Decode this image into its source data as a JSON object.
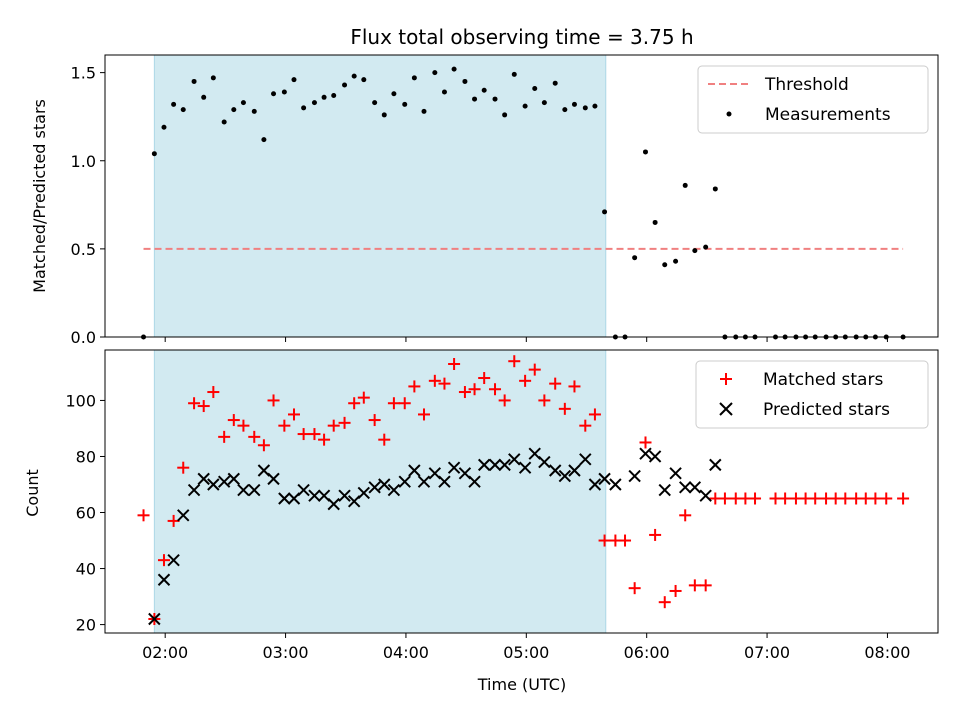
{
  "chart_data": {
    "title": "Flux total observing time = 3.75 h",
    "xlabel": "Time (UTC)",
    "x_tick_labels": [
      "02:00",
      "03:00",
      "04:00",
      "05:00",
      "06:00",
      "07:00",
      "08:00"
    ],
    "x_ticks": [
      2,
      3,
      4,
      5,
      6,
      7,
      8
    ],
    "xlim": [
      1.5,
      8.42
    ],
    "shaded_interval": [
      1.91,
      5.66
    ],
    "colors": {
      "shade": "#add8e6",
      "threshold": "#f08080",
      "measurements": "#000000",
      "matched": "#ff0000",
      "predicted": "#000000"
    },
    "panels": [
      {
        "type": "scatter",
        "ylabel": "Matched/Predicted stars",
        "ylim": [
          0,
          1.6
        ],
        "y_ticks": [
          0.0,
          0.5,
          1.0,
          1.5
        ],
        "y_tick_labels": [
          "0.0",
          "0.5",
          "1.0",
          "1.5"
        ],
        "legend_position": "top-right",
        "threshold": {
          "name": "Threshold",
          "value": 0.5,
          "x_range": [
            1.82,
            8.13
          ]
        },
        "series": [
          {
            "name": "Measurements",
            "points": [
              [
                1.82,
                0.0
              ],
              [
                1.91,
                1.04
              ],
              [
                1.99,
                1.19
              ],
              [
                2.07,
                1.32
              ],
              [
                2.15,
                1.29
              ],
              [
                2.24,
                1.45
              ],
              [
                2.32,
                1.36
              ],
              [
                2.4,
                1.47
              ],
              [
                2.49,
                1.22
              ],
              [
                2.57,
                1.29
              ],
              [
                2.65,
                1.33
              ],
              [
                2.74,
                1.28
              ],
              [
                2.82,
                1.12
              ],
              [
                2.9,
                1.38
              ],
              [
                2.99,
                1.39
              ],
              [
                3.07,
                1.46
              ],
              [
                3.15,
                1.3
              ],
              [
                3.24,
                1.33
              ],
              [
                3.32,
                1.36
              ],
              [
                3.4,
                1.37
              ],
              [
                3.49,
                1.43
              ],
              [
                3.57,
                1.48
              ],
              [
                3.65,
                1.46
              ],
              [
                3.74,
                1.33
              ],
              [
                3.82,
                1.26
              ],
              [
                3.9,
                1.38
              ],
              [
                3.99,
                1.32
              ],
              [
                4.07,
                1.47
              ],
              [
                4.15,
                1.28
              ],
              [
                4.24,
                1.5
              ],
              [
                4.32,
                1.39
              ],
              [
                4.4,
                1.52
              ],
              [
                4.49,
                1.45
              ],
              [
                4.57,
                1.35
              ],
              [
                4.65,
                1.4
              ],
              [
                4.74,
                1.35
              ],
              [
                4.82,
                1.26
              ],
              [
                4.9,
                1.49
              ],
              [
                4.99,
                1.31
              ],
              [
                5.07,
                1.41
              ],
              [
                5.15,
                1.33
              ],
              [
                5.24,
                1.44
              ],
              [
                5.32,
                1.29
              ],
              [
                5.4,
                1.32
              ],
              [
                5.49,
                1.3
              ],
              [
                5.57,
                1.31
              ],
              [
                5.65,
                0.71
              ],
              [
                5.74,
                0.0
              ],
              [
                5.82,
                0.0
              ],
              [
                5.9,
                0.45
              ],
              [
                5.99,
                1.05
              ],
              [
                6.07,
                0.65
              ],
              [
                6.15,
                0.41
              ],
              [
                6.24,
                0.43
              ],
              [
                6.32,
                0.86
              ],
              [
                6.4,
                0.49
              ],
              [
                6.49,
                0.51
              ],
              [
                6.57,
                0.84
              ],
              [
                6.65,
                0.0
              ],
              [
                6.74,
                0.0
              ],
              [
                6.82,
                0.0
              ],
              [
                6.9,
                0.0
              ],
              [
                7.07,
                0.0
              ],
              [
                7.15,
                0.0
              ],
              [
                7.24,
                0.0
              ],
              [
                7.32,
                0.0
              ],
              [
                7.4,
                0.0
              ],
              [
                7.49,
                0.0
              ],
              [
                7.57,
                0.0
              ],
              [
                7.65,
                0.0
              ],
              [
                7.74,
                0.0
              ],
              [
                7.82,
                0.0
              ],
              [
                7.9,
                0.0
              ],
              [
                7.99,
                0.0
              ],
              [
                8.13,
                0.0
              ]
            ]
          }
        ]
      },
      {
        "type": "scatter",
        "ylabel": "Count",
        "ylim": [
          17,
          118
        ],
        "y_ticks": [
          20,
          40,
          60,
          80,
          100
        ],
        "y_tick_labels": [
          "20",
          "40",
          "60",
          "80",
          "100"
        ],
        "legend_position": "top-right",
        "series": [
          {
            "name": "Matched stars",
            "marker": "plus",
            "points": [
              [
                1.82,
                59
              ],
              [
                1.91,
                22
              ],
              [
                1.99,
                43
              ],
              [
                2.07,
                57
              ],
              [
                2.15,
                76
              ],
              [
                2.24,
                99
              ],
              [
                2.32,
                98
              ],
              [
                2.4,
                103
              ],
              [
                2.49,
                87
              ],
              [
                2.57,
                93
              ],
              [
                2.65,
                91
              ],
              [
                2.74,
                87
              ],
              [
                2.82,
                84
              ],
              [
                2.9,
                100
              ],
              [
                2.99,
                91
              ],
              [
                3.07,
                95
              ],
              [
                3.15,
                88
              ],
              [
                3.24,
                88
              ],
              [
                3.32,
                86
              ],
              [
                3.4,
                91
              ],
              [
                3.49,
                92
              ],
              [
                3.57,
                99
              ],
              [
                3.65,
                101
              ],
              [
                3.74,
                93
              ],
              [
                3.82,
                86
              ],
              [
                3.9,
                99
              ],
              [
                3.99,
                99
              ],
              [
                4.07,
                105
              ],
              [
                4.15,
                95
              ],
              [
                4.24,
                107
              ],
              [
                4.32,
                106
              ],
              [
                4.4,
                113
              ],
              [
                4.49,
                103
              ],
              [
                4.57,
                104
              ],
              [
                4.65,
                108
              ],
              [
                4.74,
                104
              ],
              [
                4.82,
                100
              ],
              [
                4.9,
                114
              ],
              [
                4.99,
                107
              ],
              [
                5.07,
                111
              ],
              [
                5.15,
                100
              ],
              [
                5.24,
                106
              ],
              [
                5.32,
                97
              ],
              [
                5.4,
                105
              ],
              [
                5.49,
                91
              ],
              [
                5.57,
                95
              ],
              [
                5.65,
                50
              ],
              [
                5.74,
                50
              ],
              [
                5.82,
                50
              ],
              [
                5.9,
                33
              ],
              [
                5.99,
                85
              ],
              [
                6.07,
                52
              ],
              [
                6.15,
                28
              ],
              [
                6.24,
                32
              ],
              [
                6.32,
                59
              ],
              [
                6.4,
                34
              ],
              [
                6.49,
                34
              ],
              [
                6.57,
                65
              ],
              [
                6.65,
                65
              ],
              [
                6.74,
                65
              ],
              [
                6.82,
                65
              ],
              [
                6.9,
                65
              ],
              [
                7.07,
                65
              ],
              [
                7.15,
                65
              ],
              [
                7.24,
                65
              ],
              [
                7.32,
                65
              ],
              [
                7.4,
                65
              ],
              [
                7.49,
                65
              ],
              [
                7.57,
                65
              ],
              [
                7.65,
                65
              ],
              [
                7.74,
                65
              ],
              [
                7.82,
                65
              ],
              [
                7.9,
                65
              ],
              [
                7.99,
                65
              ],
              [
                8.13,
                65
              ]
            ]
          },
          {
            "name": "Predicted stars",
            "marker": "x",
            "points": [
              [
                1.91,
                22
              ],
              [
                1.99,
                36
              ],
              [
                2.07,
                43
              ],
              [
                2.15,
                59
              ],
              [
                2.24,
                68
              ],
              [
                2.32,
                72
              ],
              [
                2.4,
                70
              ],
              [
                2.49,
                71
              ],
              [
                2.57,
                72
              ],
              [
                2.65,
                68
              ],
              [
                2.74,
                68
              ],
              [
                2.82,
                75
              ],
              [
                2.9,
                72
              ],
              [
                2.99,
                65
              ],
              [
                3.07,
                65
              ],
              [
                3.15,
                68
              ],
              [
                3.24,
                66
              ],
              [
                3.32,
                66
              ],
              [
                3.4,
                63
              ],
              [
                3.49,
                66
              ],
              [
                3.57,
                64
              ],
              [
                3.65,
                67
              ],
              [
                3.74,
                69
              ],
              [
                3.82,
                70
              ],
              [
                3.9,
                68
              ],
              [
                3.99,
                71
              ],
              [
                4.07,
                75
              ],
              [
                4.15,
                71
              ],
              [
                4.24,
                74
              ],
              [
                4.32,
                71
              ],
              [
                4.4,
                76
              ],
              [
                4.49,
                74
              ],
              [
                4.57,
                71
              ],
              [
                4.65,
                77
              ],
              [
                4.74,
                77
              ],
              [
                4.82,
                77
              ],
              [
                4.9,
                79
              ],
              [
                4.99,
                76
              ],
              [
                5.07,
                81
              ],
              [
                5.15,
                78
              ],
              [
                5.24,
                75
              ],
              [
                5.32,
                73
              ],
              [
                5.4,
                75
              ],
              [
                5.49,
                79
              ],
              [
                5.57,
                70
              ],
              [
                5.65,
                72
              ],
              [
                5.74,
                70
              ],
              [
                5.9,
                73
              ],
              [
                5.99,
                81
              ],
              [
                6.07,
                80
              ],
              [
                6.15,
                68
              ],
              [
                6.24,
                74
              ],
              [
                6.32,
                69
              ],
              [
                6.4,
                69
              ],
              [
                6.49,
                66
              ],
              [
                6.57,
                77
              ]
            ]
          }
        ]
      }
    ]
  }
}
